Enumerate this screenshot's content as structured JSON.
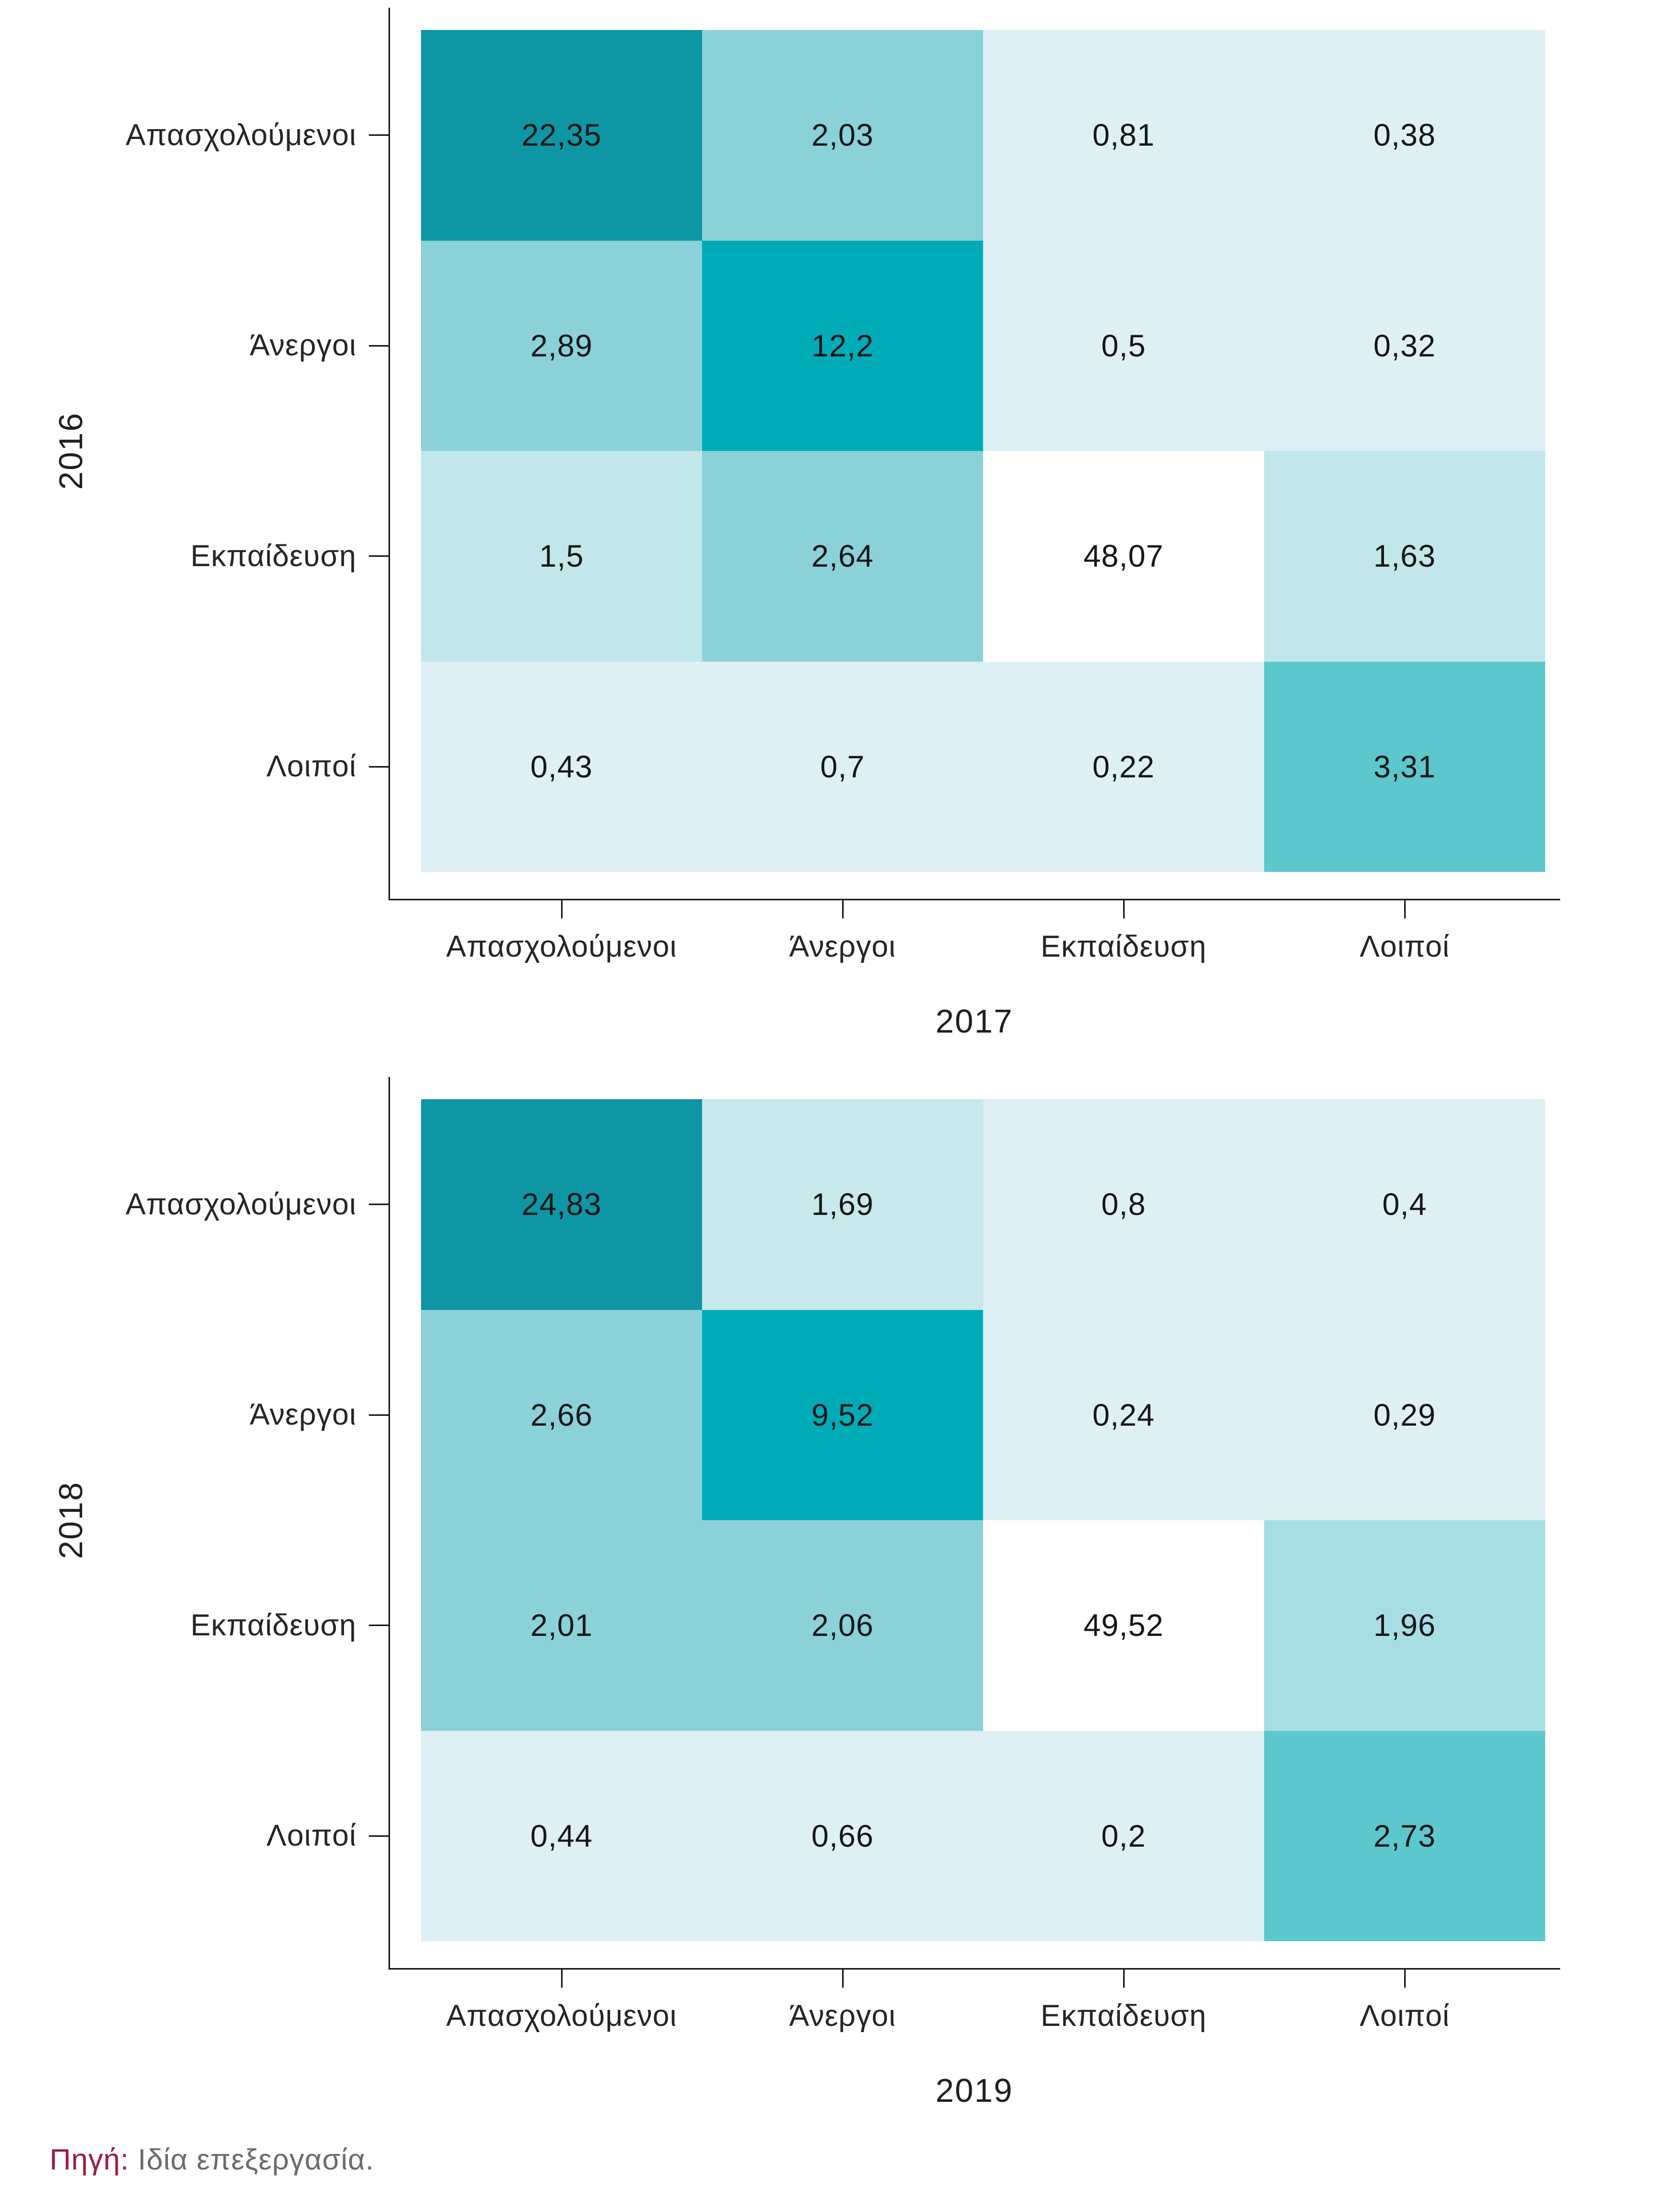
{
  "footer": {
    "source_label": "Πηγή:",
    "source_text": " Ιδία επεξεργασία."
  },
  "colors": {
    "cell_dark": "#0e96a4",
    "cell_vivid": "#00abb8",
    "cell_medium": "#8ad2d8",
    "cell_bright": "#5cc8ce",
    "cell_light_medium": "#a6dee3",
    "cell_light": "#c2e7ea",
    "cell_lighter": "#c7e9ec",
    "cell_pale": "#def0f3",
    "cell_white": "#ffffff",
    "axis": "#1a1a1a",
    "source_label_color": "#9b1c40",
    "source_text_color": "#6b6b6e"
  },
  "chart_data": [
    {
      "type": "heatmap",
      "ylabel": "2016",
      "xlabel": "2017",
      "rows": [
        "Απασχολούμενοι",
        "Άνεργοι",
        "Εκπαίδευση",
        "Λοιποί"
      ],
      "cols": [
        "Απασχολούμενοι",
        "Άνεργοι",
        "Εκπαίδευση",
        "Λοιποί"
      ],
      "values": [
        [
          22.35,
          2.03,
          0.81,
          0.38
        ],
        [
          2.89,
          12.2,
          0.5,
          0.32
        ],
        [
          1.5,
          2.64,
          48.07,
          1.63
        ],
        [
          0.43,
          0.7,
          0.22,
          3.31
        ]
      ],
      "value_labels": [
        [
          "22,35",
          "2,03",
          "0,81",
          "0,38"
        ],
        [
          "2,89",
          "12,2",
          "0,5",
          "0,32"
        ],
        [
          "1,5",
          "2,64",
          "48,07",
          "1,63"
        ],
        [
          "0,43",
          "0,7",
          "0,22",
          "3,31"
        ]
      ],
      "cell_colors": [
        [
          "#0e96a4",
          "#8ad2d8",
          "#def0f3",
          "#def0f3"
        ],
        [
          "#8ad2d8",
          "#00abb8",
          "#def0f3",
          "#def0f3"
        ],
        [
          "#c2e7ea",
          "#8ad2d8",
          "#ffffff",
          "#c2e7ea"
        ],
        [
          "#def0f3",
          "#def0f3",
          "#def0f3",
          "#5cc8ce"
        ]
      ],
      "legend": "none",
      "grid": "off"
    },
    {
      "type": "heatmap",
      "ylabel": "2018",
      "xlabel": "2019",
      "rows": [
        "Απασχολούμενοι",
        "Άνεργοι",
        "Εκπαίδευση",
        "Λοιποί"
      ],
      "cols": [
        "Απασχολούμενοι",
        "Άνεργοι",
        "Εκπαίδευση",
        "Λοιποί"
      ],
      "values": [
        [
          24.83,
          1.69,
          0.8,
          0.4
        ],
        [
          2.66,
          9.52,
          0.24,
          0.29
        ],
        [
          2.01,
          2.06,
          49.52,
          1.96
        ],
        [
          0.44,
          0.66,
          0.2,
          2.73
        ]
      ],
      "value_labels": [
        [
          "24,83",
          "1,69",
          "0,8",
          "0,4"
        ],
        [
          "2,66",
          "9,52",
          "0,24",
          "0,29"
        ],
        [
          "2,01",
          "2,06",
          "49,52",
          "1,96"
        ],
        [
          "0,44",
          "0,66",
          "0,2",
          "2,73"
        ]
      ],
      "cell_colors": [
        [
          "#0e96a4",
          "#c7e9ec",
          "#def0f3",
          "#def0f3"
        ],
        [
          "#8ad2d8",
          "#00abb8",
          "#def0f3",
          "#def0f3"
        ],
        [
          "#8ad2d8",
          "#8ad2d8",
          "#ffffff",
          "#a6dee3"
        ],
        [
          "#def0f3",
          "#def0f3",
          "#def0f3",
          "#5cc8ce"
        ]
      ],
      "legend": "none",
      "grid": "off"
    }
  ]
}
